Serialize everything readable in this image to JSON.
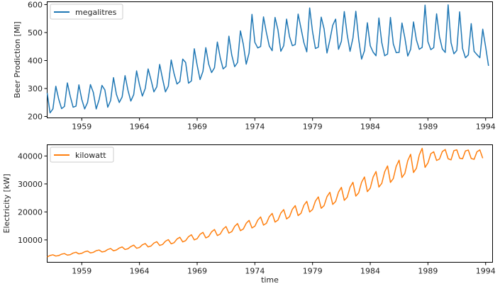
{
  "chart_data": [
    {
      "type": "line",
      "title": "",
      "xlabel": "",
      "ylabel": "Beer Prodiction [Ml]",
      "xlim": [
        1956.0,
        1994.6
      ],
      "ylim": [
        195,
        610
      ],
      "xticks": [
        1959,
        1964,
        1969,
        1974,
        1979,
        1984,
        1989,
        1994
      ],
      "yticks": [
        200,
        300,
        400,
        500,
        600
      ],
      "grid": false,
      "legend_position": "top-left",
      "series": [
        {
          "name": "megalitres",
          "color": "#1f77b4",
          "x_start": 1956.0,
          "x_step": 0.25,
          "values": [
            284,
            213,
            227,
            308,
            262,
            228,
            236,
            320,
            272,
            233,
            237,
            313,
            261,
            227,
            250,
            314,
            286,
            227,
            260,
            311,
            295,
            233,
            257,
            339,
            279,
            250,
            270,
            346,
            294,
            255,
            278,
            363,
            313,
            273,
            300,
            370,
            331,
            288,
            306,
            386,
            335,
            288,
            308,
            402,
            353,
            316,
            325,
            405,
            393,
            319,
            327,
            442,
            383,
            332,
            361,
            446,
            387,
            357,
            374,
            466,
            410,
            370,
            379,
            487,
            419,
            378,
            393,
            506,
            458,
            387,
            427,
            565,
            465,
            445,
            450,
            556,
            500,
            452,
            435,
            554,
            510,
            433,
            453,
            548,
            486,
            453,
            457,
            566,
            515,
            464,
            431,
            588,
            503,
            443,
            448,
            555,
            513,
            427,
            473,
            526,
            548,
            440,
            469,
            575,
            493,
            433,
            480,
            576,
            475,
            405,
            435,
            535,
            453,
            430,
            417,
            552,
            464,
            417,
            423,
            554,
            459,
            428,
            429,
            534,
            481,
            416,
            440,
            538,
            474,
            440,
            447,
            598,
            467,
            439,
            446,
            567,
            485,
            441,
            429,
            599,
            464,
            424,
            436,
            574,
            443,
            410,
            420,
            532,
            433,
            421,
            410,
            512,
            449,
            381
          ]
        }
      ]
    },
    {
      "type": "line",
      "title": "",
      "xlabel": "time",
      "ylabel": "Electricity [kW]",
      "xlim": [
        1956.0,
        1994.6
      ],
      "ylim": [
        2000,
        44000
      ],
      "xticks": [
        1959,
        1964,
        1969,
        1974,
        1979,
        1984,
        1989,
        1994
      ],
      "yticks": [
        10000,
        20000,
        30000,
        40000
      ],
      "grid": false,
      "legend_position": "top-left",
      "series": [
        {
          "name": "kilowatt",
          "color": "#ff7f0e",
          "x_start": 1956.0,
          "x_step": 0.25,
          "values": [
            3924,
            4436,
            4676,
            4231,
            4395,
            4910,
            5113,
            4560,
            4719,
            5309,
            5585,
            4993,
            5218,
            5765,
            6020,
            5351,
            5559,
            6150,
            6384,
            5692,
            5880,
            6576,
            6919,
            6113,
            6388,
            7103,
            7472,
            6571,
            6833,
            7625,
            8124,
            7018,
            7301,
            8233,
            8699,
            7502,
            7822,
            8862,
            9354,
            8020,
            8371,
            9521,
            10102,
            8603,
            9011,
            10301,
            10954,
            9276,
            9730,
            11142,
            11830,
            10005,
            10442,
            11991,
            12703,
            10723,
            11230,
            12882,
            13714,
            11565,
            12086,
            13872,
            14760,
            12435,
            12950,
            14848,
            15829,
            13313,
            13891,
            15933,
            16987,
            14273,
            14901,
            17078,
            18202,
            15296,
            15937,
            18296,
            19464,
            16360,
            17077,
            19579,
            20830,
            17496,
            18270,
            20950,
            22242,
            18694,
            19523,
            22371,
            23780,
            19972,
            20855,
            23878,
            25372,
            21299,
            22255,
            25451,
            27019,
            22687,
            23725,
            27097,
            28772,
            24145,
            25235,
            28807,
            30576,
            25664,
            26839,
            30606,
            32487,
            27250,
            28492,
            32454,
            34427,
            28889,
            30195,
            34347,
            36440,
            30559,
            31946,
            36308,
            38494,
            32302,
            33760,
            38322,
            40586,
            34089,
            35605,
            40372,
            42711,
            35918,
            37501,
            40800,
            41500,
            38400,
            38900,
            41600,
            42300,
            39000,
            38600,
            41900,
            42200,
            39200,
            39000,
            41800,
            42100,
            39100,
            38800,
            41500,
            42150,
            39200
          ]
        }
      ]
    }
  ]
}
